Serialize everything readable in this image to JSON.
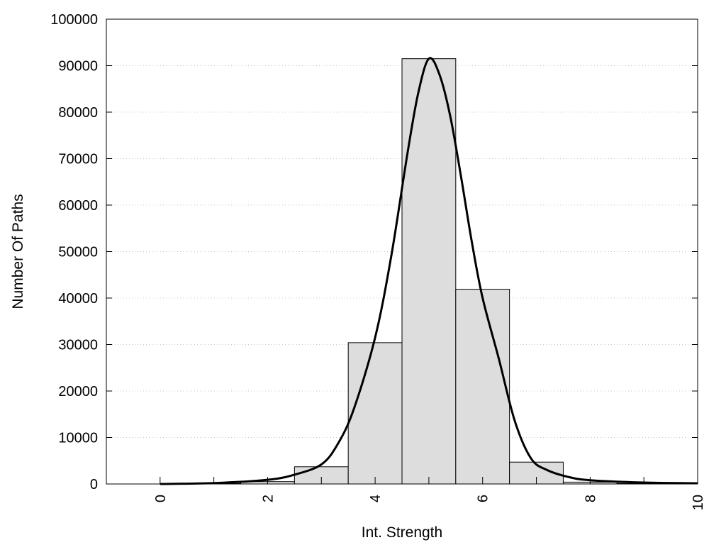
{
  "chart_data": {
    "type": "bar",
    "title": "",
    "xlabel": "Int. Strength",
    "ylabel": "Number Of Paths",
    "xlim": [
      -1,
      10
    ],
    "ylim": [
      0,
      100000
    ],
    "xticks": [
      0,
      2,
      4,
      6,
      8,
      10
    ],
    "yticks": [
      0,
      10000,
      20000,
      30000,
      40000,
      50000,
      60000,
      70000,
      80000,
      90000,
      100000
    ],
    "grid": "horizontal dotted",
    "legend": "none",
    "bin_width": 1,
    "bins": [
      {
        "center": 0,
        "value": 0
      },
      {
        "center": 1,
        "value": 100
      },
      {
        "center": 2,
        "value": 500
      },
      {
        "center": 3,
        "value": 3700
      },
      {
        "center": 4,
        "value": 30400
      },
      {
        "center": 5,
        "value": 91500
      },
      {
        "center": 6,
        "value": 41900
      },
      {
        "center": 7,
        "value": 4700
      },
      {
        "center": 8,
        "value": 400
      },
      {
        "center": 9,
        "value": 100
      },
      {
        "center": 10,
        "value": 0
      }
    ],
    "fit_curve": {
      "x": [
        0,
        1,
        2,
        2.5,
        3,
        3.3,
        3.6,
        4,
        4.3,
        4.6,
        4.8,
        5,
        5.2,
        5.4,
        5.6,
        5.8,
        6,
        6.3,
        6.6,
        6.9,
        7.2,
        7.6,
        8,
        9,
        10
      ],
      "y": [
        0,
        200,
        900,
        2000,
        4200,
        8500,
        16000,
        31500,
        49000,
        71000,
        84000,
        91500,
        88000,
        79000,
        66000,
        52000,
        40000,
        27000,
        13500,
        5500,
        3000,
        1500,
        800,
        300,
        150
      ]
    },
    "colors": {
      "bar_fill": "#dddddd",
      "bar_stroke": "#000000",
      "curve": "#000000",
      "grid": "#c8c8c8"
    }
  }
}
